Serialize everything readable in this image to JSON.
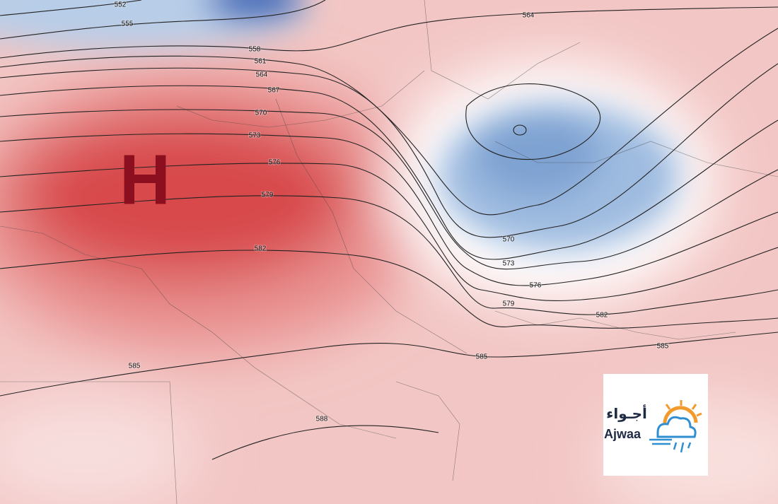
{
  "map": {
    "high_label": "H",
    "contour_labels": [
      552,
      555,
      558,
      561,
      564,
      567,
      570,
      573,
      576,
      579,
      582,
      585,
      588,
      564,
      570,
      573,
      576,
      579,
      582,
      585,
      585
    ],
    "logo": {
      "arabic": "أجـواء",
      "latin": "Ajwaa"
    }
  }
}
